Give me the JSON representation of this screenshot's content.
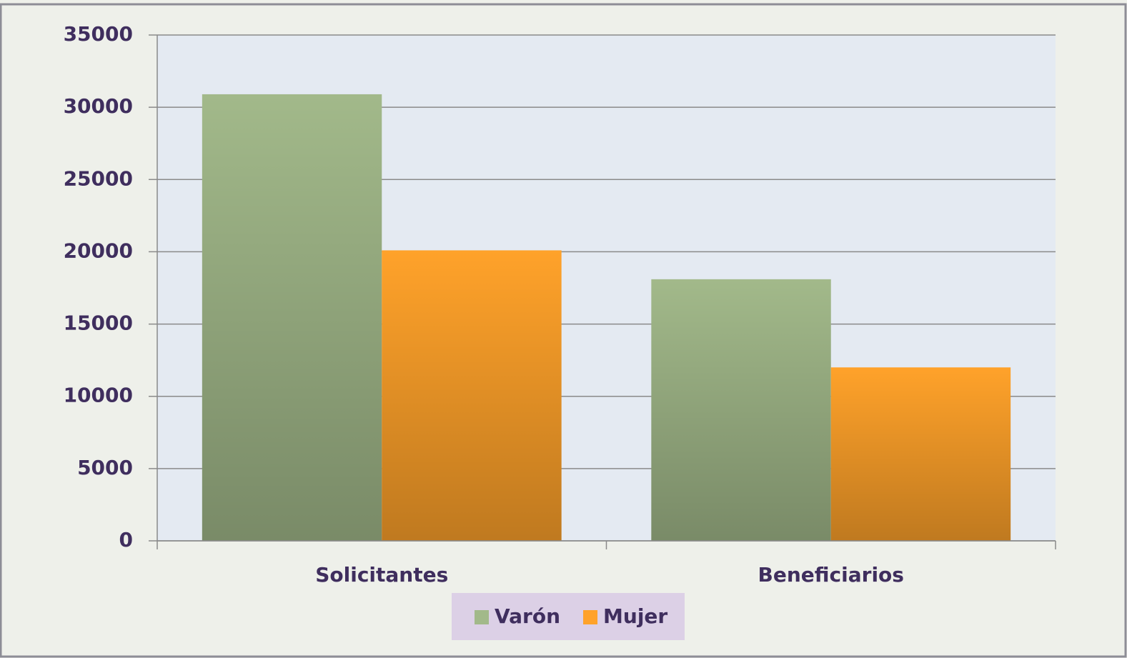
{
  "chart_data": {
    "type": "bar",
    "categories": [
      "Solicitantes",
      "Beneficiarios"
    ],
    "series": [
      {
        "name": "Varón",
        "color": "#a2b98a",
        "values": [
          30900,
          18100
        ]
      },
      {
        "name": "Mujer",
        "color": "#ffa22a",
        "values": [
          20100,
          12000
        ]
      }
    ],
    "ylim": [
      0,
      35000
    ],
    "yticks": [
      0,
      5000,
      10000,
      15000,
      20000,
      25000,
      30000,
      35000
    ],
    "grid": true,
    "legend": "bottom"
  }
}
